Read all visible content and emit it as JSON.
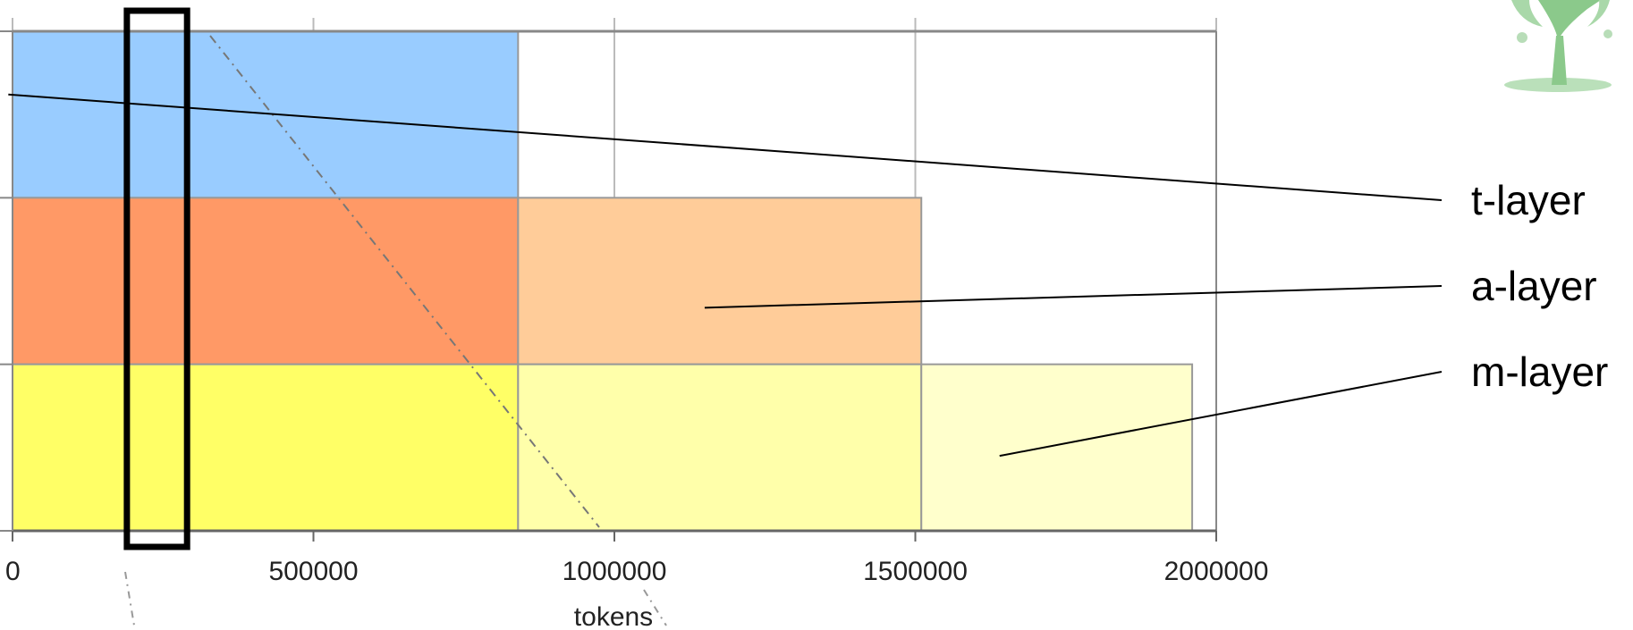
{
  "chart_data": {
    "type": "bar",
    "orientation": "horizontal-stacked",
    "xlabel": "tokens",
    "ylabel": "",
    "title": "",
    "xlim": [
      0,
      2000000
    ],
    "xticks": [
      0,
      500000,
      1000000,
      1500000,
      2000000
    ],
    "xtick_labels": [
      "0",
      "500000",
      "1000000",
      "1500000",
      "2000000"
    ],
    "grid": true,
    "layers": [
      {
        "name": "t-layer",
        "segments": [
          {
            "start": 0,
            "end": 840000,
            "color": "#99ccff"
          }
        ]
      },
      {
        "name": "a-layer",
        "segments": [
          {
            "start": 0,
            "end": 840000,
            "color": "#ff9966"
          },
          {
            "start": 840000,
            "end": 1510000,
            "color": "#ffcc99"
          }
        ]
      },
      {
        "name": "m-layer",
        "segments": [
          {
            "start": 0,
            "end": 840000,
            "color": "#ffff66"
          },
          {
            "start": 840000,
            "end": 1510000,
            "color": "#ffffaa"
          },
          {
            "start": 1510000,
            "end": 1960000,
            "color": "#ffffcc"
          }
        ]
      }
    ],
    "highlight_window": {
      "start": 190000,
      "end": 290000
    }
  },
  "decoration": {
    "tree_icon": "tree-icon",
    "tree_color": "#8bc98b"
  }
}
